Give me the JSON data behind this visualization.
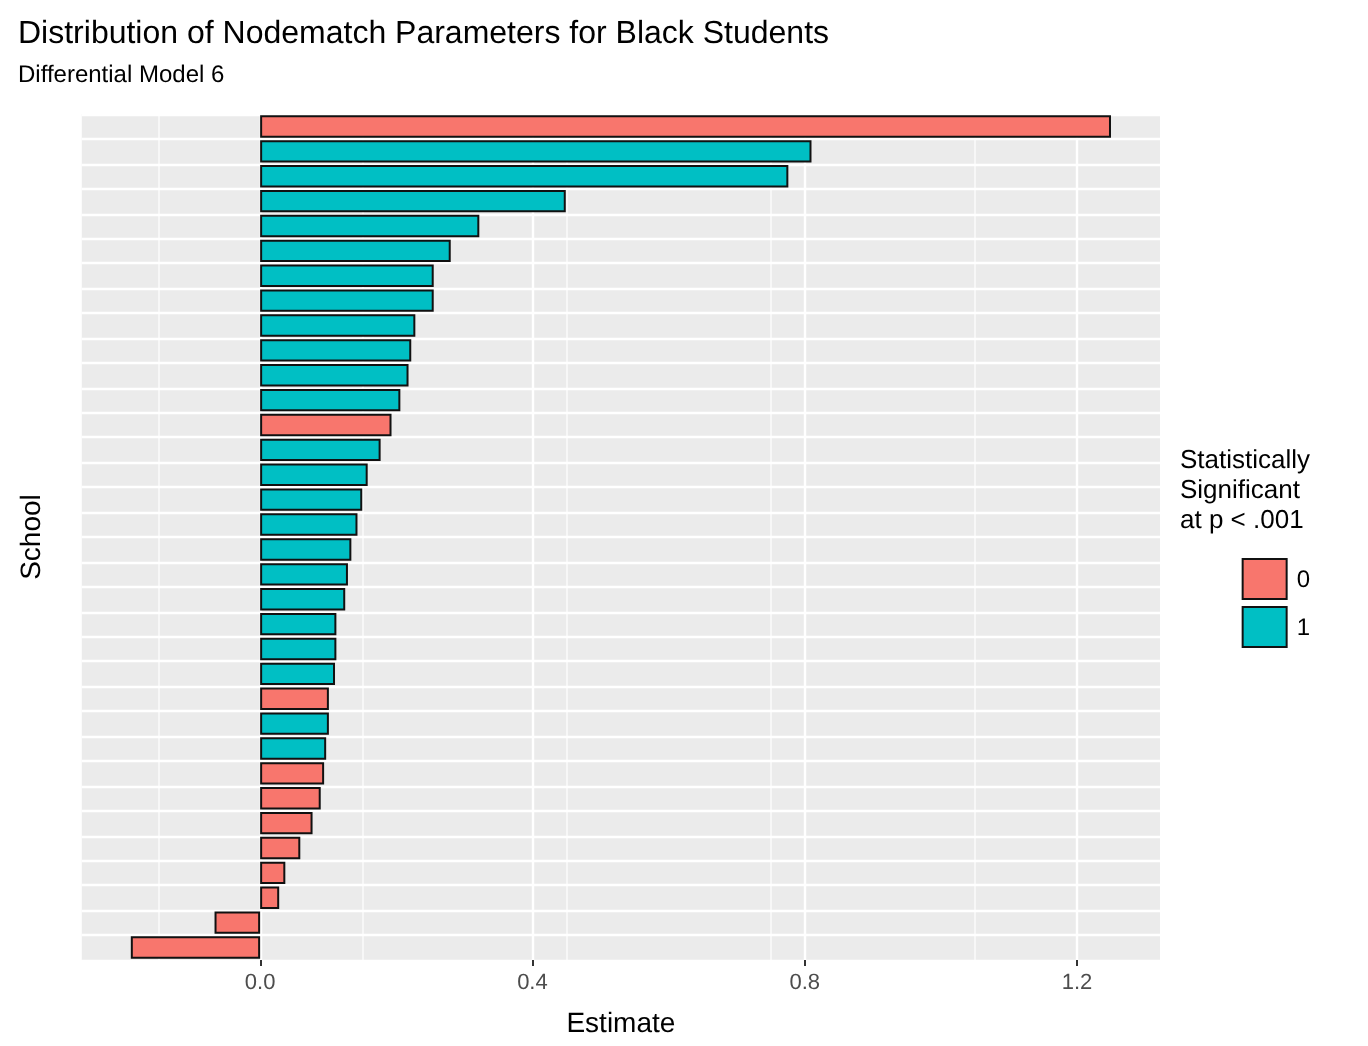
{
  "chart_data": {
    "type": "bar",
    "orientation": "horizontal",
    "title": "Distribution of Nodematch Parameters for Black Students",
    "subtitle": "Differential Model 6",
    "xlabel": "Estimate",
    "ylabel": "School",
    "legend_title": "Statistically\nSignificant\nat p < .001",
    "categories": [
      null,
      null,
      null,
      null,
      null,
      null,
      null,
      null,
      null,
      null,
      null,
      null,
      null,
      null,
      null,
      null,
      null,
      null,
      null,
      null,
      null,
      null,
      null,
      null,
      null,
      null,
      null,
      null,
      null,
      null,
      null,
      null,
      null,
      null
    ],
    "series": [
      {
        "name": "0",
        "color": "#f8766d",
        "values": [
          1.25,
          null,
          null,
          null,
          null,
          null,
          null,
          null,
          null,
          null,
          null,
          null,
          0.193,
          null,
          null,
          null,
          null,
          null,
          null,
          null,
          null,
          null,
          null,
          0.101,
          null,
          null,
          0.094,
          0.089,
          0.077,
          0.059,
          0.037,
          0.028,
          -0.067,
          -0.19
        ]
      },
      {
        "name": "1",
        "color": "#00bfc4",
        "values": [
          null,
          0.81,
          0.776,
          0.449,
          0.322,
          0.28,
          0.255,
          0.255,
          0.228,
          0.222,
          0.218,
          0.206,
          null,
          0.177,
          0.158,
          0.15,
          0.143,
          0.134,
          0.129,
          0.125,
          0.112,
          0.112,
          0.11,
          null,
          0.101,
          0.097,
          null,
          null,
          null,
          null,
          null,
          null,
          null,
          null
        ]
      }
    ],
    "xlim": [
      -0.262,
      1.322
    ],
    "xticks": [
      {
        "value": 0,
        "label": "0.0"
      },
      {
        "value": 0.4,
        "label": "0.4"
      },
      {
        "value": 0.8,
        "label": "0.8"
      },
      {
        "value": 1.2,
        "label": "1.2"
      }
    ],
    "grid": true,
    "legend": "right"
  }
}
